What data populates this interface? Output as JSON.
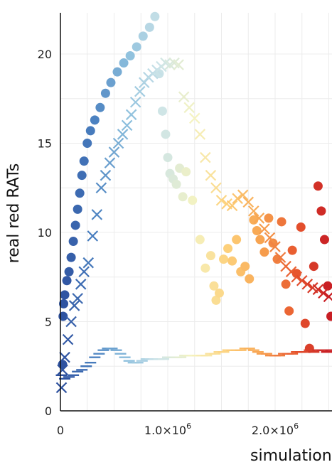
{
  "chart_data": {
    "type": "scatter",
    "title": "",
    "xlabel": "simulation",
    "ylabel": "real red RATs",
    "xlim": [
      0,
      2500000
    ],
    "ylim": [
      0,
      22.3
    ],
    "grid": true,
    "legend": "none",
    "x_ticks": [
      {
        "value": 0,
        "mantissa": "0",
        "exp": ""
      },
      {
        "value": 1000000,
        "mantissa": "1.0×10",
        "exp": "6"
      },
      {
        "value": 2000000,
        "mantissa": "2.0×10",
        "exp": "6"
      }
    ],
    "y_ticks": [
      {
        "value": 0,
        "label": "0"
      },
      {
        "value": 5,
        "label": "5"
      },
      {
        "value": 10,
        "label": "10"
      },
      {
        "value": 15,
        "label": "15"
      },
      {
        "value": 20,
        "label": "20"
      }
    ],
    "colors": [
      "#2c4f9e",
      "#4a80c0",
      "#8cbfdd",
      "#cde4e8",
      "#f5f3c0",
      "#fdd07a",
      "#f7a24f",
      "#e8582e",
      "#c81e24"
    ],
    "series": [
      {
        "marker": "circle",
        "points": [
          [
            20000,
            2.6
          ],
          [
            25000,
            5.3
          ],
          [
            30000,
            6.0
          ],
          [
            40000,
            6.5
          ],
          [
            60000,
            7.3
          ],
          [
            80000,
            7.8
          ],
          [
            100000,
            8.6
          ],
          [
            120000,
            9.5
          ],
          [
            140000,
            10.4
          ],
          [
            160000,
            11.3
          ],
          [
            180000,
            12.2
          ],
          [
            200000,
            13.2
          ],
          [
            220000,
            14.0
          ],
          [
            250000,
            15.0
          ],
          [
            280000,
            15.7
          ],
          [
            320000,
            16.3
          ],
          [
            370000,
            17.0
          ],
          [
            420000,
            17.8
          ],
          [
            470000,
            18.4
          ],
          [
            530000,
            19.0
          ],
          [
            590000,
            19.5
          ],
          [
            650000,
            19.9
          ],
          [
            710000,
            20.4
          ],
          [
            770000,
            21.0
          ],
          [
            830000,
            21.5
          ],
          [
            880000,
            22.1
          ],
          [
            920000,
            18.9
          ],
          [
            950000,
            16.8
          ],
          [
            980000,
            15.5
          ],
          [
            1000000,
            14.2
          ],
          [
            1020000,
            13.3
          ],
          [
            1050000,
            13.0
          ],
          [
            1080000,
            12.7
          ],
          [
            1110000,
            13.6
          ],
          [
            1140000,
            12.0
          ],
          [
            1170000,
            13.4
          ],
          [
            1230000,
            11.8
          ],
          [
            1300000,
            9.6
          ],
          [
            1350000,
            8.0
          ],
          [
            1400000,
            8.7
          ],
          [
            1430000,
            7.0
          ],
          [
            1450000,
            6.2
          ],
          [
            1480000,
            6.6
          ],
          [
            1520000,
            8.5
          ],
          [
            1560000,
            9.1
          ],
          [
            1600000,
            8.4
          ],
          [
            1640000,
            9.6
          ],
          [
            1680000,
            7.8
          ],
          [
            1720000,
            8.1
          ],
          [
            1760000,
            7.4
          ],
          [
            1800000,
            10.7
          ],
          [
            1830000,
            10.1
          ],
          [
            1860000,
            9.6
          ],
          [
            1900000,
            8.9
          ],
          [
            1940000,
            10.8
          ],
          [
            1980000,
            9.4
          ],
          [
            2020000,
            8.5
          ],
          [
            2060000,
            10.6
          ],
          [
            2100000,
            7.1
          ],
          [
            2130000,
            5.6
          ],
          [
            2160000,
            9.0
          ],
          [
            2200000,
            7.7
          ],
          [
            2240000,
            10.3
          ],
          [
            2280000,
            4.9
          ],
          [
            2320000,
            3.5
          ],
          [
            2360000,
            8.1
          ],
          [
            2400000,
            12.6
          ],
          [
            2430000,
            11.2
          ],
          [
            2460000,
            9.6
          ],
          [
            2490000,
            7.0
          ],
          [
            2520000,
            5.3
          ]
        ]
      },
      {
        "marker": "x",
        "points": [
          [
            10000,
            1.3
          ],
          [
            20000,
            2.3
          ],
          [
            40000,
            3.0
          ],
          [
            70000,
            4.0
          ],
          [
            100000,
            5.0
          ],
          [
            130000,
            5.9
          ],
          [
            160000,
            6.3
          ],
          [
            190000,
            7.1
          ],
          [
            220000,
            7.8
          ],
          [
            260000,
            8.3
          ],
          [
            300000,
            9.8
          ],
          [
            340000,
            11.0
          ],
          [
            380000,
            12.5
          ],
          [
            420000,
            13.2
          ],
          [
            460000,
            13.9
          ],
          [
            500000,
            14.5
          ],
          [
            540000,
            15.0
          ],
          [
            580000,
            15.5
          ],
          [
            620000,
            16.0
          ],
          [
            660000,
            16.6
          ],
          [
            700000,
            17.3
          ],
          [
            740000,
            17.9
          ],
          [
            780000,
            18.4
          ],
          [
            820000,
            18.7
          ],
          [
            860000,
            18.9
          ],
          [
            900000,
            19.1
          ],
          [
            940000,
            19.3
          ],
          [
            980000,
            19.5
          ],
          [
            1020000,
            19.4
          ],
          [
            1060000,
            19.5
          ],
          [
            1100000,
            19.4
          ],
          [
            1150000,
            17.6
          ],
          [
            1200000,
            17.0
          ],
          [
            1250000,
            16.4
          ],
          [
            1300000,
            15.5
          ],
          [
            1350000,
            14.2
          ],
          [
            1400000,
            13.2
          ],
          [
            1450000,
            12.5
          ],
          [
            1500000,
            11.8
          ],
          [
            1550000,
            11.6
          ],
          [
            1600000,
            11.5
          ],
          [
            1650000,
            11.9
          ],
          [
            1700000,
            12.1
          ],
          [
            1750000,
            11.7
          ],
          [
            1800000,
            11.2
          ],
          [
            1850000,
            10.8
          ],
          [
            1900000,
            10.2
          ],
          [
            1950000,
            9.7
          ],
          [
            2000000,
            9.2
          ],
          [
            2050000,
            8.6
          ],
          [
            2100000,
            8.1
          ],
          [
            2150000,
            7.8
          ],
          [
            2200000,
            7.5
          ],
          [
            2250000,
            7.3
          ],
          [
            2300000,
            7.1
          ],
          [
            2350000,
            6.9
          ],
          [
            2400000,
            6.8
          ],
          [
            2450000,
            6.6
          ],
          [
            2500000,
            6.4
          ]
        ]
      },
      {
        "marker": "hline",
        "points": [
          [
            10000,
            2.0
          ],
          [
            40000,
            1.8
          ],
          [
            80000,
            1.9
          ],
          [
            120000,
            2.0
          ],
          [
            160000,
            2.2
          ],
          [
            200000,
            2.3
          ],
          [
            240000,
            2.5
          ],
          [
            280000,
            2.7
          ],
          [
            320000,
            3.0
          ],
          [
            360000,
            3.2
          ],
          [
            400000,
            3.4
          ],
          [
            440000,
            3.5
          ],
          [
            480000,
            3.5
          ],
          [
            520000,
            3.4
          ],
          [
            560000,
            3.2
          ],
          [
            600000,
            3.0
          ],
          [
            640000,
            2.8
          ],
          [
            680000,
            2.7
          ],
          [
            720000,
            2.7
          ],
          [
            760000,
            2.8
          ],
          [
            800000,
            2.9
          ],
          [
            840000,
            2.9
          ],
          [
            880000,
            2.9
          ],
          [
            920000,
            2.9
          ],
          [
            960000,
            2.9
          ],
          [
            1000000,
            3.0
          ],
          [
            1040000,
            3.0
          ],
          [
            1080000,
            3.0
          ],
          [
            1120000,
            3.0
          ],
          [
            1160000,
            3.1
          ],
          [
            1200000,
            3.1
          ],
          [
            1240000,
            3.1
          ],
          [
            1280000,
            3.1
          ],
          [
            1320000,
            3.1
          ],
          [
            1360000,
            3.1
          ],
          [
            1400000,
            3.2
          ],
          [
            1440000,
            3.2
          ],
          [
            1480000,
            3.3
          ],
          [
            1520000,
            3.3
          ],
          [
            1560000,
            3.4
          ],
          [
            1600000,
            3.4
          ],
          [
            1640000,
            3.4
          ],
          [
            1680000,
            3.4
          ],
          [
            1720000,
            3.5
          ],
          [
            1760000,
            3.5
          ],
          [
            1800000,
            3.4
          ],
          [
            1840000,
            3.3
          ],
          [
            1880000,
            3.2
          ],
          [
            1920000,
            3.2
          ],
          [
            1960000,
            3.1
          ],
          [
            2000000,
            3.1
          ],
          [
            2040000,
            3.1
          ],
          [
            2080000,
            3.2
          ],
          [
            2120000,
            3.2
          ],
          [
            2160000,
            3.2
          ],
          [
            2200000,
            3.3
          ],
          [
            2240000,
            3.3
          ],
          [
            2280000,
            3.3
          ],
          [
            2320000,
            3.4
          ],
          [
            2360000,
            3.3
          ],
          [
            2400000,
            3.4
          ],
          [
            2440000,
            3.4
          ],
          [
            2480000,
            3.3
          ],
          [
            2520000,
            3.4
          ]
        ]
      }
    ]
  }
}
